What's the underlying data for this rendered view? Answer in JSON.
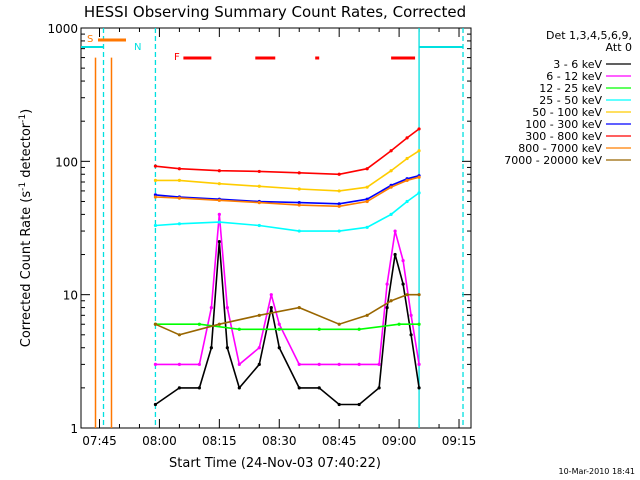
{
  "stamp": "10-Mar-2010 18:41",
  "colors": {
    "background": "#ffffff",
    "axes": "#000000",
    "attenuator_line": "#ff7700",
    "flare_flag": "#ff0000",
    "night_markers": "#00e0e0"
  },
  "flags": {
    "saa_label": "S",
    "night_label": "N",
    "flare_label": "F"
  },
  "chart_data": {
    "type": "line",
    "title": "HESSI Observing Summary Count Rates, Corrected",
    "xlabel": "Start Time (24-Nov-03 07:40:22)",
    "ylabel_parts": [
      "Corrected Count Rate (s",
      "-1",
      " detector",
      "-1",
      ")"
    ],
    "xlim": [
      "07:40:22",
      "09:18:00"
    ],
    "ylim": [
      1,
      1000
    ],
    "yscale": "log",
    "grid": false,
    "legend_placement": "right",
    "legend_header": [
      "Det 1,3,4,5,6,9,",
      "Att 0"
    ],
    "x_ticks": [
      "07:45",
      "08:00",
      "08:15",
      "08:30",
      "08:45",
      "09:00",
      "09:15"
    ],
    "y_ticks": [
      "1",
      "10",
      "100",
      "1000"
    ],
    "data_gaps": [
      [
        "07:46",
        "07:59"
      ],
      [
        "09:05",
        "09:16"
      ]
    ],
    "series": [
      {
        "name": "3 - 6 keV",
        "color": "#000000",
        "x": [
          "07:59",
          "08:05",
          "08:10",
          "08:13",
          "08:15",
          "08:17",
          "08:20",
          "08:25",
          "08:28",
          "08:30",
          "08:35",
          "08:40",
          "08:45",
          "08:50",
          "08:55",
          "08:57",
          "08:59",
          "09:01",
          "09:03",
          "09:05"
        ],
        "y": [
          1.5,
          2,
          2,
          4,
          25,
          4,
          2,
          3,
          8,
          4,
          2,
          2,
          1.5,
          1.5,
          2,
          8,
          20,
          12,
          5,
          2
        ]
      },
      {
        "name": "6 - 12 keV",
        "color": "#ff00ff",
        "x": [
          "07:59",
          "08:05",
          "08:10",
          "08:13",
          "08:15",
          "08:17",
          "08:20",
          "08:25",
          "08:28",
          "08:30",
          "08:35",
          "08:40",
          "08:45",
          "08:50",
          "08:55",
          "08:57",
          "08:59",
          "09:01",
          "09:03",
          "09:05"
        ],
        "y": [
          3,
          3,
          3,
          8,
          40,
          8,
          3,
          4,
          10,
          6,
          3,
          3,
          3,
          3,
          3,
          12,
          30,
          18,
          7,
          3
        ]
      },
      {
        "name": "12 - 25 keV",
        "color": "#00ff00",
        "x": [
          "07:59",
          "08:10",
          "08:20",
          "08:30",
          "08:40",
          "08:50",
          "09:00",
          "09:05"
        ],
        "y": [
          6,
          6,
          5.5,
          5.5,
          5.5,
          5.5,
          6,
          6
        ]
      },
      {
        "name": "25 - 50 keV",
        "color": "#00ffff",
        "x": [
          "07:59",
          "08:05",
          "08:15",
          "08:25",
          "08:35",
          "08:45",
          "08:52",
          "08:58",
          "09:02",
          "09:05"
        ],
        "y": [
          33,
          34,
          35,
          33,
          30,
          30,
          32,
          40,
          50,
          58
        ]
      },
      {
        "name": "50 - 100 keV",
        "color": "#ffcc00",
        "x": [
          "07:59",
          "08:05",
          "08:15",
          "08:25",
          "08:35",
          "08:45",
          "08:52",
          "08:58",
          "09:02",
          "09:05"
        ],
        "y": [
          72,
          72,
          68,
          65,
          62,
          60,
          64,
          85,
          105,
          120
        ]
      },
      {
        "name": "100 - 300 keV",
        "color": "#0000ff",
        "x": [
          "07:59",
          "08:05",
          "08:15",
          "08:25",
          "08:35",
          "08:45",
          "08:52",
          "08:58",
          "09:02",
          "09:05"
        ],
        "y": [
          56,
          54,
          52,
          50,
          49,
          48,
          52,
          66,
          74,
          78
        ]
      },
      {
        "name": "300 - 800 keV",
        "color": "#ff0000",
        "x": [
          "07:59",
          "08:05",
          "08:15",
          "08:25",
          "08:35",
          "08:45",
          "08:52",
          "08:58",
          "09:02",
          "09:05"
        ],
        "y": [
          92,
          88,
          85,
          84,
          82,
          80,
          88,
          120,
          150,
          175
        ]
      },
      {
        "name": "800 - 7000 keV",
        "color": "#ff7f00",
        "x": [
          "07:59",
          "08:05",
          "08:15",
          "08:25",
          "08:35",
          "08:45",
          "08:52",
          "08:58",
          "09:02",
          "09:05"
        ],
        "y": [
          54,
          53,
          51,
          49,
          47,
          46,
          50,
          64,
          72,
          76
        ]
      },
      {
        "name": "7000 - 20000 keV",
        "color": "#996600",
        "x": [
          "07:59",
          "08:05",
          "08:15",
          "08:25",
          "08:35",
          "08:45",
          "08:52",
          "08:58",
          "09:02",
          "09:05"
        ],
        "y": [
          6,
          5,
          6,
          7,
          8,
          6,
          7,
          9,
          10,
          10
        ]
      }
    ]
  }
}
